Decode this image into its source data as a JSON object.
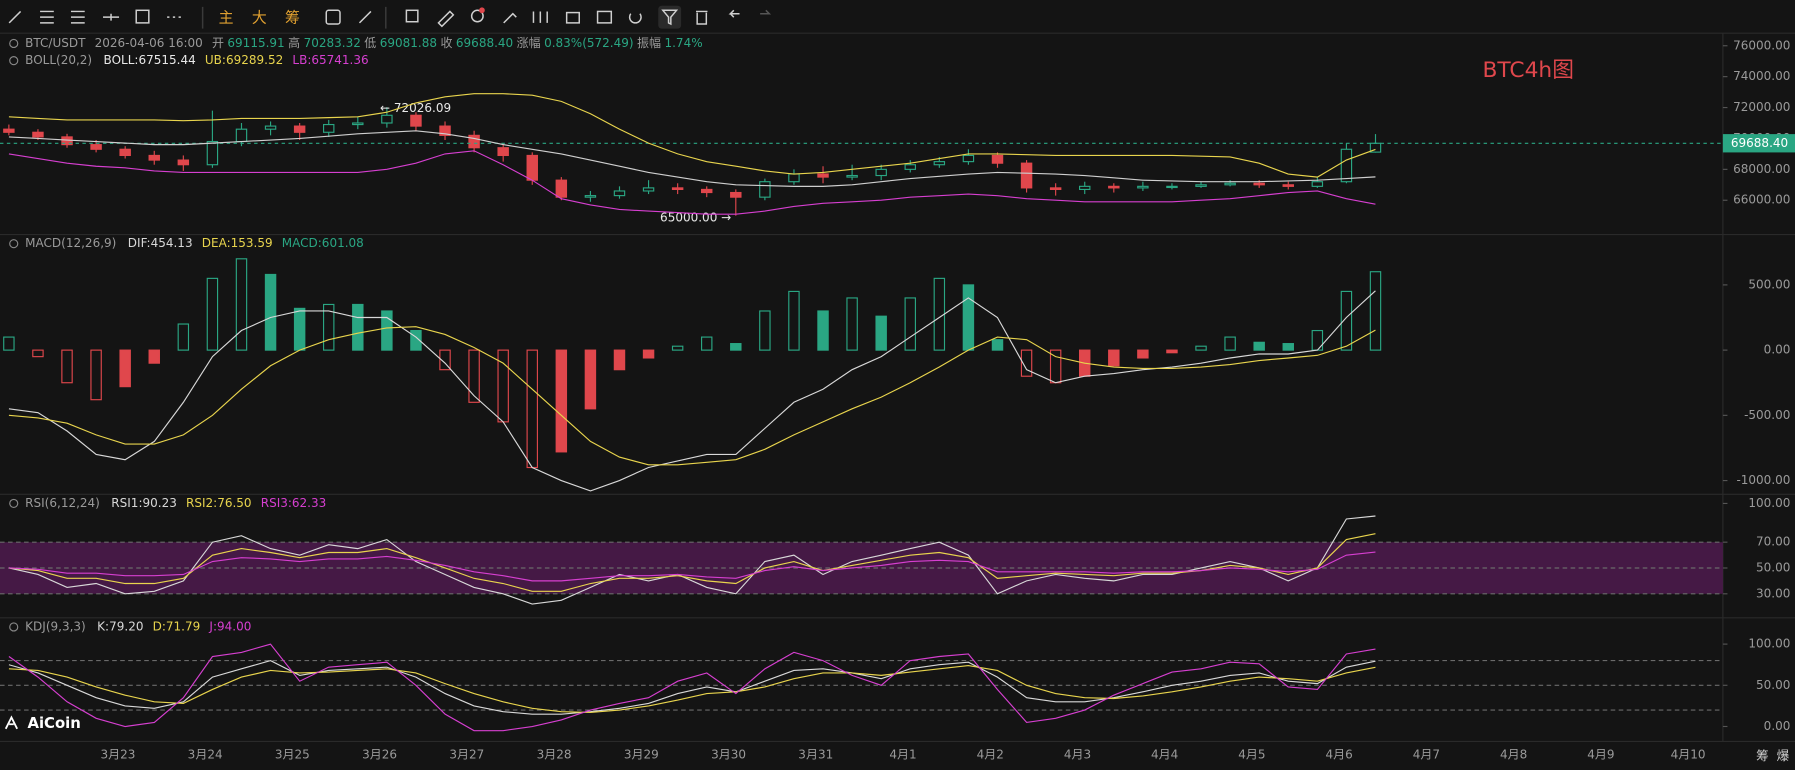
{
  "toolbar": {
    "buttons": [
      "主",
      "大",
      "筹"
    ]
  },
  "watermark": "AiCoin",
  "corner_buttons": [
    "筹",
    "爆"
  ],
  "time_axis": {
    "labels": [
      "3月23",
      "3月24",
      "3月25",
      "3月26",
      "3月27",
      "3月28",
      "3月29",
      "3月30",
      "3月31",
      "4月1",
      "4月2",
      "4月3",
      "4月4",
      "4月5",
      "4月6",
      "4月7",
      "4月8",
      "4月9",
      "4月10"
    ]
  },
  "chart_data": [
    {
      "type": "candlestick",
      "title": "BTC4h图",
      "header": [
        "BTC/USDT",
        "2026-04-06 16:00",
        "开",
        "69115.91",
        "高",
        "70283.32",
        "低",
        "69081.88",
        "收",
        "69688.40",
        "涨幅",
        "0.83%(572.49)",
        "振幅",
        "1.74%"
      ],
      "indicator": "BOLL(20,2)",
      "up_color": "#2aa683",
      "down_color": "#e0474c",
      "candles": [
        [
          70600,
          70900,
          70200,
          70400
        ],
        [
          70400,
          70600,
          69900,
          70100
        ],
        [
          70100,
          70300,
          69400,
          69600
        ],
        [
          69600,
          69900,
          69100,
          69300
        ],
        [
          69300,
          69500,
          68700,
          68900
        ],
        [
          68900,
          69200,
          68300,
          68600
        ],
        [
          68600,
          68900,
          67900,
          68300
        ],
        [
          68300,
          71800,
          68100,
          69800
        ],
        [
          69800,
          71000,
          69500,
          70600
        ],
        [
          70600,
          71100,
          70200,
          70800
        ],
        [
          70800,
          71000,
          69900,
          70400
        ],
        [
          70400,
          71200,
          70100,
          70900
        ],
        [
          70900,
          71400,
          70600,
          71000
        ],
        [
          71000,
          72026.09,
          70700,
          71500
        ],
        [
          71500,
          71700,
          70500,
          70800
        ],
        [
          70800,
          71100,
          69900,
          70200
        ],
        [
          70200,
          70500,
          69100,
          69400
        ],
        [
          69400,
          69700,
          68500,
          68900
        ],
        [
          68900,
          69100,
          67000,
          67300
        ],
        [
          67300,
          67500,
          66000,
          66200
        ],
        [
          66200,
          66600,
          65900,
          66300
        ],
        [
          66300,
          66900,
          66100,
          66600
        ],
        [
          66600,
          67300,
          66400,
          66800
        ],
        [
          66800,
          67100,
          66400,
          66700
        ],
        [
          66700,
          66900,
          66200,
          66500
        ],
        [
          66500,
          66700,
          65000,
          66200
        ],
        [
          66200,
          67400,
          66000,
          67200
        ],
        [
          67200,
          68000,
          67000,
          67700
        ],
        [
          67700,
          68200,
          67100,
          67500
        ],
        [
          67500,
          68300,
          67300,
          67600
        ],
        [
          67600,
          68300,
          67300,
          68000
        ],
        [
          68000,
          68600,
          67800,
          68300
        ],
        [
          68300,
          68800,
          68100,
          68500
        ],
        [
          68500,
          69300,
          68300,
          68900
        ],
        [
          68900,
          69100,
          68100,
          68400
        ],
        [
          68400,
          68600,
          66500,
          66800
        ],
        [
          66800,
          67100,
          66300,
          66700
        ],
        [
          66700,
          67200,
          66400,
          66900
        ],
        [
          66900,
          67100,
          66500,
          66800
        ],
        [
          66800,
          67200,
          66600,
          66900
        ],
        [
          66900,
          67100,
          66700,
          66900
        ],
        [
          66900,
          67200,
          66800,
          67000
        ],
        [
          67000,
          67300,
          66900,
          67100
        ],
        [
          67100,
          67300,
          66800,
          67000
        ],
        [
          67000,
          67200,
          66700,
          66900
        ],
        [
          66900,
          67500,
          66800,
          67200
        ],
        [
          67200,
          69700,
          67100,
          69300
        ],
        [
          69115.91,
          70283.32,
          69081.88,
          69688.4
        ]
      ],
      "series": [
        {
          "label": "BOLL:67515.44",
          "color": "#cfcfcf",
          "values": [
            70100,
            70000,
            69900,
            69800,
            69700,
            69600,
            69600,
            69700,
            69800,
            69900,
            70000,
            70150,
            70300,
            70400,
            70500,
            70300,
            70000,
            69600,
            69300,
            69000,
            68600,
            68200,
            67800,
            67500,
            67200,
            67000,
            66950,
            66900,
            66900,
            67000,
            67200,
            67400,
            67550,
            67700,
            67800,
            67750,
            67700,
            67600,
            67450,
            67300,
            67250,
            67200,
            67200,
            67200,
            67250,
            67300,
            67400,
            67515.44
          ]
        },
        {
          "label": "UB:69289.52",
          "color": "#e8d44d",
          "values": [
            71400,
            71300,
            71200,
            71200,
            71200,
            71200,
            71150,
            71200,
            71300,
            71300,
            71300,
            71350,
            71400,
            71700,
            72300,
            72700,
            72900,
            72900,
            72800,
            72400,
            71600,
            70600,
            69700,
            69000,
            68500,
            68200,
            67900,
            67700,
            67800,
            68000,
            68200,
            68400,
            68700,
            69000,
            69000,
            68950,
            68900,
            68900,
            68900,
            68900,
            68900,
            68850,
            68800,
            68400,
            67700,
            67500,
            68600,
            69289.52
          ]
        },
        {
          "label": "LB:65741.36",
          "color": "#d63fd0",
          "values": [
            69000,
            68700,
            68400,
            68200,
            68100,
            67900,
            67800,
            67800,
            67800,
            67800,
            67800,
            67800,
            67800,
            68000,
            68400,
            69000,
            69200,
            68300,
            67300,
            66100,
            65700,
            65400,
            65300,
            65200,
            65100,
            65100,
            65300,
            65600,
            65800,
            65900,
            66000,
            66200,
            66300,
            66400,
            66300,
            66100,
            66000,
            65900,
            65900,
            65900,
            65900,
            66000,
            66100,
            66300,
            66500,
            66600,
            66100,
            65741.36
          ]
        }
      ],
      "max_label": "← 72026.09",
      "min_label": "65000.00 →",
      "last_price_label": "69688.40",
      "ylim": [
        63780,
        76740
      ],
      "yticks": [
        {
          "value": 76000,
          "label": "76000.00"
        },
        {
          "value": 74000,
          "label": "74000.00"
        },
        {
          "value": 72000,
          "label": "72000.00"
        },
        {
          "value": 70000,
          "label": "70000.00"
        },
        {
          "value": 68000,
          "label": "68000.00"
        },
        {
          "value": 66000,
          "label": "66000.00"
        }
      ]
    },
    {
      "type": "macd",
      "indicator": "MACD(12,26,9)",
      "histogram": {
        "label": "MACD:601.08",
        "up_color": "#2aa683",
        "down_color": "#e0474c",
        "values": [
          100,
          -50,
          -250,
          -380,
          -280,
          -100,
          200,
          550,
          700,
          580,
          320,
          350,
          350,
          300,
          150,
          -150,
          -400,
          -550,
          -900,
          -780,
          -450,
          -150,
          -60,
          30,
          100,
          50,
          300,
          450,
          300,
          400,
          260,
          400,
          550,
          500,
          80,
          -200,
          -250,
          -200,
          -120,
          -60,
          -20,
          30,
          100,
          60,
          50,
          150,
          450,
          601.08
        ]
      },
      "series": [
        {
          "label": "DIF:454.13",
          "color": "#d8d8d8",
          "values": [
            -450,
            -480,
            -620,
            -800,
            -840,
            -700,
            -400,
            -50,
            150,
            250,
            300,
            300,
            250,
            250,
            100,
            -100,
            -350,
            -550,
            -900,
            -1000,
            -1080,
            -1000,
            -900,
            -850,
            -800,
            -800,
            -600,
            -400,
            -300,
            -150,
            -50,
            100,
            250,
            400,
            250,
            -150,
            -250,
            -200,
            -180,
            -150,
            -130,
            -100,
            -60,
            -30,
            -30,
            0,
            250,
            454.13
          ]
        },
        {
          "label": "DEA:153.59",
          "color": "#e8d44d",
          "values": [
            -500,
            -520,
            -560,
            -650,
            -720,
            -720,
            -650,
            -500,
            -300,
            -120,
            0,
            80,
            130,
            170,
            180,
            120,
            20,
            -100,
            -300,
            -500,
            -700,
            -820,
            -880,
            -880,
            -860,
            -840,
            -760,
            -650,
            -550,
            -450,
            -360,
            -250,
            -130,
            0,
            100,
            80,
            -50,
            -100,
            -130,
            -140,
            -140,
            -130,
            -110,
            -80,
            -60,
            -40,
            30,
            153.59
          ]
        }
      ],
      "ylim": [
        -1105,
        886
      ],
      "yticks": [
        {
          "value": 500,
          "label": "500.00"
        },
        {
          "value": 0,
          "label": "0.00"
        },
        {
          "value": -500,
          "label": "-500.00"
        },
        {
          "value": -1000,
          "label": "-1000.00"
        }
      ]
    },
    {
      "type": "rsi",
      "indicator": "RSI(6,12,24)",
      "band": [
        30,
        70
      ],
      "band_color": "#4e1a4e",
      "guides": [
        70,
        50,
        30
      ],
      "series": [
        {
          "label": "RSI1:90.23",
          "color": "#d8d8d8",
          "values": [
            50,
            45,
            35,
            38,
            30,
            32,
            40,
            70,
            75,
            65,
            60,
            68,
            65,
            72,
            55,
            45,
            35,
            30,
            22,
            25,
            35,
            45,
            40,
            45,
            35,
            30,
            55,
            60,
            45,
            55,
            60,
            65,
            70,
            60,
            30,
            40,
            45,
            42,
            40,
            45,
            45,
            50,
            55,
            50,
            40,
            50,
            88,
            90.23
          ]
        },
        {
          "label": "RSI2:76.50",
          "color": "#e8d44d",
          "values": [
            50,
            48,
            42,
            42,
            38,
            38,
            42,
            60,
            65,
            62,
            58,
            62,
            62,
            65,
            58,
            50,
            42,
            38,
            32,
            32,
            38,
            42,
            42,
            44,
            40,
            38,
            50,
            55,
            48,
            52,
            56,
            60,
            62,
            58,
            42,
            44,
            46,
            45,
            44,
            46,
            46,
            48,
            52,
            50,
            45,
            50,
            72,
            76.5
          ]
        },
        {
          "label": "RSI3:62.33",
          "color": "#d63fd0",
          "values": [
            50,
            49,
            46,
            46,
            44,
            44,
            45,
            55,
            58,
            57,
            55,
            57,
            57,
            59,
            56,
            52,
            47,
            44,
            40,
            40,
            42,
            44,
            44,
            45,
            43,
            42,
            48,
            51,
            48,
            50,
            52,
            55,
            56,
            55,
            47,
            47,
            47,
            47,
            46,
            47,
            47,
            48,
            50,
            49,
            47,
            49,
            60,
            62.33
          ]
        }
      ],
      "ylim": [
        11.4,
        107.1
      ],
      "yticks": [
        {
          "value": 100,
          "label": "100.00"
        },
        {
          "value": 70,
          "label": "70.00"
        },
        {
          "value": 50,
          "label": "50.00"
        },
        {
          "value": 30,
          "label": "30.00"
        }
      ]
    },
    {
      "type": "kdj",
      "indicator": "KDJ(9,3,3)",
      "guides": [
        80,
        50,
        20
      ],
      "series": [
        {
          "label": "K:79.20",
          "color": "#d8d8d8",
          "values": [
            75,
            65,
            50,
            35,
            25,
            22,
            30,
            60,
            70,
            80,
            62,
            68,
            70,
            72,
            60,
            40,
            25,
            18,
            15,
            15,
            18,
            22,
            28,
            40,
            48,
            42,
            55,
            68,
            70,
            65,
            58,
            70,
            75,
            78,
            60,
            35,
            30,
            30,
            35,
            42,
            50,
            55,
            62,
            65,
            55,
            52,
            72,
            79.2
          ]
        },
        {
          "label": "D:71.79",
          "color": "#e8d44d",
          "values": [
            70,
            68,
            60,
            48,
            38,
            30,
            28,
            45,
            60,
            68,
            65,
            66,
            68,
            70,
            65,
            52,
            40,
            30,
            22,
            18,
            17,
            20,
            25,
            32,
            40,
            42,
            48,
            58,
            65,
            65,
            62,
            66,
            70,
            74,
            68,
            50,
            40,
            35,
            34,
            37,
            42,
            48,
            55,
            60,
            58,
            55,
            65,
            71.79
          ]
        },
        {
          "label": "J:94.00",
          "color": "#d63fd0",
          "values": [
            85,
            60,
            30,
            10,
            0,
            5,
            35,
            85,
            90,
            100,
            55,
            72,
            75,
            78,
            50,
            15,
            -5,
            -5,
            0,
            8,
            20,
            28,
            35,
            55,
            65,
            40,
            70,
            90,
            80,
            62,
            50,
            80,
            85,
            88,
            45,
            5,
            10,
            20,
            38,
            52,
            66,
            70,
            78,
            76,
            48,
            45,
            88,
            94
          ]
        }
      ],
      "ylim": [
        -18.1,
        131.9
      ],
      "yticks": [
        {
          "value": 100,
          "label": "100.00"
        },
        {
          "value": 50,
          "label": "50.00"
        },
        {
          "value": 0,
          "label": "0.00"
        }
      ]
    }
  ]
}
